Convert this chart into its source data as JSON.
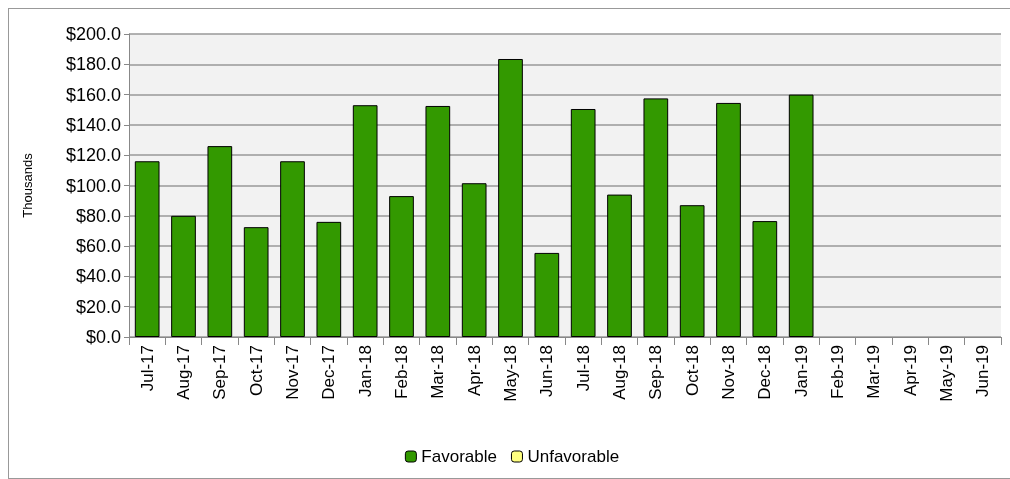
{
  "chart_data": {
    "type": "bar",
    "ylabel": "Thousands",
    "categories": [
      "Jul-17",
      "Aug-17",
      "Sep-17",
      "Oct-17",
      "Nov-17",
      "Dec-17",
      "Jan-18",
      "Feb-18",
      "Mar-18",
      "Apr-18",
      "May-18",
      "Jun-18",
      "Jul-18",
      "Aug-18",
      "Sep-18",
      "Oct-18",
      "Nov-18",
      "Dec-18",
      "Jan-19",
      "Feb-19",
      "Mar-19",
      "Apr-19",
      "May-19",
      "Jun-19"
    ],
    "series": [
      {
        "name": "Favorable",
        "color": "#339900",
        "values": [
          116,
          80,
          126,
          72.5,
          116,
          76,
          153,
          93,
          152.5,
          101.5,
          183.5,
          55.5,
          150.5,
          94,
          157.5,
          87,
          154.5,
          76.5,
          160,
          null,
          null,
          null,
          null,
          null
        ]
      },
      {
        "name": "Unfavorable",
        "color": "#ffff80",
        "values": [
          null,
          null,
          null,
          null,
          null,
          null,
          null,
          null,
          null,
          null,
          null,
          null,
          null,
          null,
          null,
          null,
          null,
          null,
          null,
          null,
          null,
          null,
          null,
          null
        ]
      }
    ],
    "stacked": true,
    "ylim": [
      0,
      200
    ],
    "yticks": [
      {
        "value": 0,
        "label": "$0.0"
      },
      {
        "value": 20,
        "label": "$20.0"
      },
      {
        "value": 40,
        "label": "$40.0"
      },
      {
        "value": 60,
        "label": "$60.0"
      },
      {
        "value": 80,
        "label": "$80.0"
      },
      {
        "value": 100,
        "label": "$100.0"
      },
      {
        "value": 120,
        "label": "$120.0"
      },
      {
        "value": 140,
        "label": "$140.0"
      },
      {
        "value": 160,
        "label": "$160.0"
      },
      {
        "value": 180,
        "label": "$180.0"
      },
      {
        "value": 200,
        "label": "$200.0"
      }
    ],
    "grid": "y",
    "legend": "bottom"
  }
}
